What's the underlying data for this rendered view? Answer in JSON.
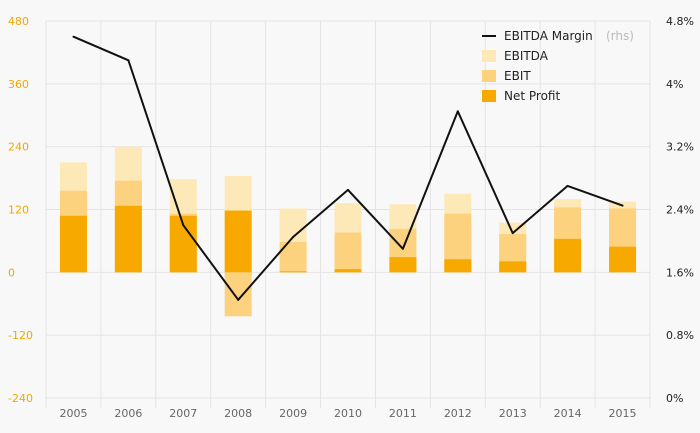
{
  "chart_data": {
    "type": "bar",
    "title": "",
    "xlabel": "",
    "ylabel": "",
    "categories": [
      "2005",
      "2006",
      "2007",
      "2008",
      "2009",
      "2010",
      "2011",
      "2012",
      "2013",
      "2014",
      "2015"
    ],
    "ylim": [
      -240,
      480
    ],
    "y_ticks": [
      "480",
      "360",
      "240",
      "120",
      "0",
      "-120",
      "-240"
    ],
    "y2lim": [
      0,
      4.8
    ],
    "y2_ticks": [
      "4.8%",
      "4%",
      "3.2%",
      "2.4%",
      "1.6%",
      "0.8%",
      "0%"
    ],
    "grid": true,
    "legend_position": "top-right",
    "legend": {
      "margin_label": "EBITDA Margin",
      "margin_suffix": "(rhs)",
      "ebitda_label": "EBITDA",
      "ebit_label": "EBIT",
      "net_label": "Net Profit"
    },
    "colors": {
      "ebitda": "#fde9b8",
      "ebit": "#fdd27f",
      "net": "#f7a900",
      "line": "#111111",
      "left_axis_text": "#f0a800",
      "grid": "#e4e4e4"
    },
    "series": [
      {
        "name": "EBITDA",
        "kind": "bar",
        "values": [
          210,
          240,
          178,
          184,
          122,
          132,
          130,
          150,
          95,
          140,
          135
        ]
      },
      {
        "name": "EBIT",
        "kind": "bar",
        "values": [
          156,
          175,
          112,
          -84,
          58,
          76,
          83,
          112,
          73,
          124,
          122
        ]
      },
      {
        "name": "Net Profit",
        "kind": "bar",
        "values": [
          108,
          127,
          108,
          118,
          2,
          6,
          29,
          25,
          21,
          64,
          49
        ]
      },
      {
        "name": "EBITDA Margin",
        "kind": "line",
        "axis": "right",
        "values": [
          4.6,
          4.3,
          2.2,
          1.25,
          2.05,
          2.65,
          1.9,
          3.65,
          2.1,
          2.7,
          2.45
        ]
      }
    ]
  }
}
